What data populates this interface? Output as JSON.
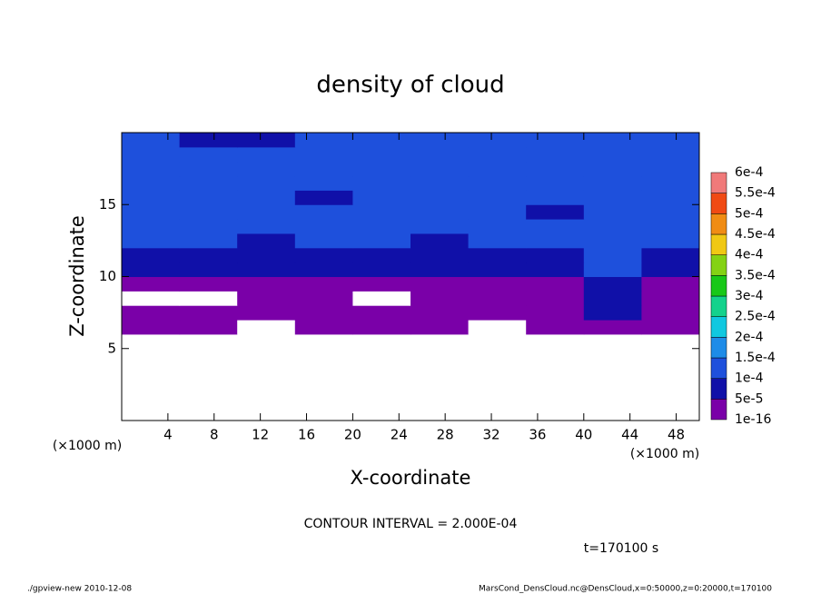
{
  "chart_data": {
    "type": "contour",
    "title": "density of cloud",
    "x_label": "X-coordinate",
    "y_label": "Z-coordinate",
    "x_unit": "(×1000 m)",
    "x_unit_right": "(×1000 m)",
    "contour_interval": "CONTOUR INTERVAL = 2.000E-04",
    "time_label": "t=170100 s",
    "footer_left": "./gpview-new  2010-12-08",
    "footer_right": "MarsCond_DensCloud.nc@DensCloud,x=0:50000,z=0:20000,t=170100",
    "xlim": [
      0,
      50
    ],
    "ylim": [
      0,
      20
    ],
    "xticks": [
      4,
      8,
      12,
      16,
      20,
      24,
      28,
      32,
      36,
      40,
      44,
      48
    ],
    "yticks": [
      5,
      10,
      15
    ],
    "xbins": [
      0,
      5,
      10,
      15,
      20,
      25,
      30,
      35,
      40,
      45,
      50
    ],
    "ybins": [
      0,
      1,
      2,
      3,
      4,
      5,
      6,
      7,
      8,
      9,
      10,
      11,
      12,
      13,
      14,
      15,
      16,
      17,
      18,
      19,
      20
    ],
    "z": [
      [
        0,
        0,
        0,
        0,
        0,
        0,
        0,
        0,
        0,
        0
      ],
      [
        0,
        0,
        0,
        0,
        0,
        0,
        0,
        0,
        0,
        0
      ],
      [
        0,
        0,
        0,
        0,
        0,
        0,
        0,
        0,
        0,
        0
      ],
      [
        0,
        0,
        0,
        0,
        0,
        0,
        0,
        0,
        0,
        0
      ],
      [
        0,
        0,
        0,
        0,
        0,
        0,
        0,
        0,
        0,
        0
      ],
      [
        0,
        0,
        0,
        0,
        0,
        0,
        0,
        0,
        0,
        0
      ],
      [
        3e-05,
        3e-05,
        0,
        3e-05,
        3e-05,
        3e-05,
        0,
        3e-05,
        3e-05,
        3e-05
      ],
      [
        3e-05,
        3e-05,
        3e-05,
        3e-05,
        3e-05,
        3e-05,
        3e-05,
        3e-05,
        6e-05,
        3e-05
      ],
      [
        0,
        0,
        3e-05,
        3e-05,
        0,
        3e-05,
        3e-05,
        3e-05,
        6e-05,
        3e-05
      ],
      [
        3e-05,
        3e-05,
        3e-05,
        3e-05,
        3e-05,
        3e-05,
        3e-05,
        3e-05,
        6e-05,
        3e-05
      ],
      [
        7e-05,
        7e-05,
        7e-05,
        7e-05,
        7e-05,
        7e-05,
        7e-05,
        7e-05,
        0.00012,
        7e-05
      ],
      [
        9e-05,
        8e-05,
        7e-05,
        7e-05,
        8e-05,
        7e-05,
        8e-05,
        8e-05,
        0.00012,
        8e-05
      ],
      [
        0.00011,
        0.00011,
        9e-05,
        0.0001,
        0.0001,
        9e-05,
        0.0001,
        0.0001,
        0.0001,
        0.0001
      ],
      [
        0.00012,
        0.00012,
        0.00011,
        0.00011,
        0.00011,
        0.00011,
        0.00011,
        0.00011,
        0.00011,
        0.00011
      ],
      [
        0.00012,
        0.00012,
        0.00011,
        0.00011,
        0.00011,
        0.00011,
        0.00011,
        8e-05,
        0.00011,
        0.00011
      ],
      [
        0.00011,
        0.00011,
        0.00011,
        8e-05,
        0.00011,
        0.00011,
        0.00011,
        0.00011,
        0.00011,
        0.00011
      ],
      [
        0.00011,
        0.00011,
        0.00011,
        0.00011,
        0.00011,
        0.00011,
        0.00011,
        0.00011,
        0.00011,
        0.00011
      ],
      [
        0.00011,
        0.00011,
        0.00011,
        0.00011,
        0.00011,
        0.00011,
        0.00011,
        0.00011,
        0.00011,
        0.00011
      ],
      [
        0.00011,
        0.00011,
        0.00011,
        0.00011,
        0.00011,
        0.00011,
        0.00011,
        0.00011,
        0.00011,
        0.00011
      ],
      [
        0.0001,
        9e-05,
        8e-05,
        0.0001,
        0.0001,
        0.0001,
        0.0001,
        0.0001,
        0.0001,
        0.0001
      ]
    ],
    "colorbar": {
      "levels": [
        {
          "value": 1e-16,
          "label": "1e-16"
        },
        {
          "value": 5e-05,
          "label": "5e-5"
        },
        {
          "value": 0.0001,
          "label": "1e-4"
        },
        {
          "value": 0.00015,
          "label": "1.5e-4"
        },
        {
          "value": 0.0002,
          "label": "2e-4"
        },
        {
          "value": 0.00025,
          "label": "2.5e-4"
        },
        {
          "value": 0.0003,
          "label": "3e-4"
        },
        {
          "value": 0.00035,
          "label": "3.5e-4"
        },
        {
          "value": 0.0004,
          "label": "4e-4"
        },
        {
          "value": 0.00045,
          "label": "4.5e-4"
        },
        {
          "value": 0.0005,
          "label": "5e-4"
        },
        {
          "value": 0.00055,
          "label": "5.5e-4"
        },
        {
          "value": 0.0006,
          "label": "6e-4"
        }
      ],
      "colors": [
        "#7a00a8",
        "#1010a8",
        "#1e50dc",
        "#1e8ce8",
        "#10c8e0",
        "#14d28c",
        "#18c818",
        "#84d214",
        "#f0c814",
        "#f08c14",
        "#f04a14",
        "#f07a7a"
      ]
    }
  }
}
